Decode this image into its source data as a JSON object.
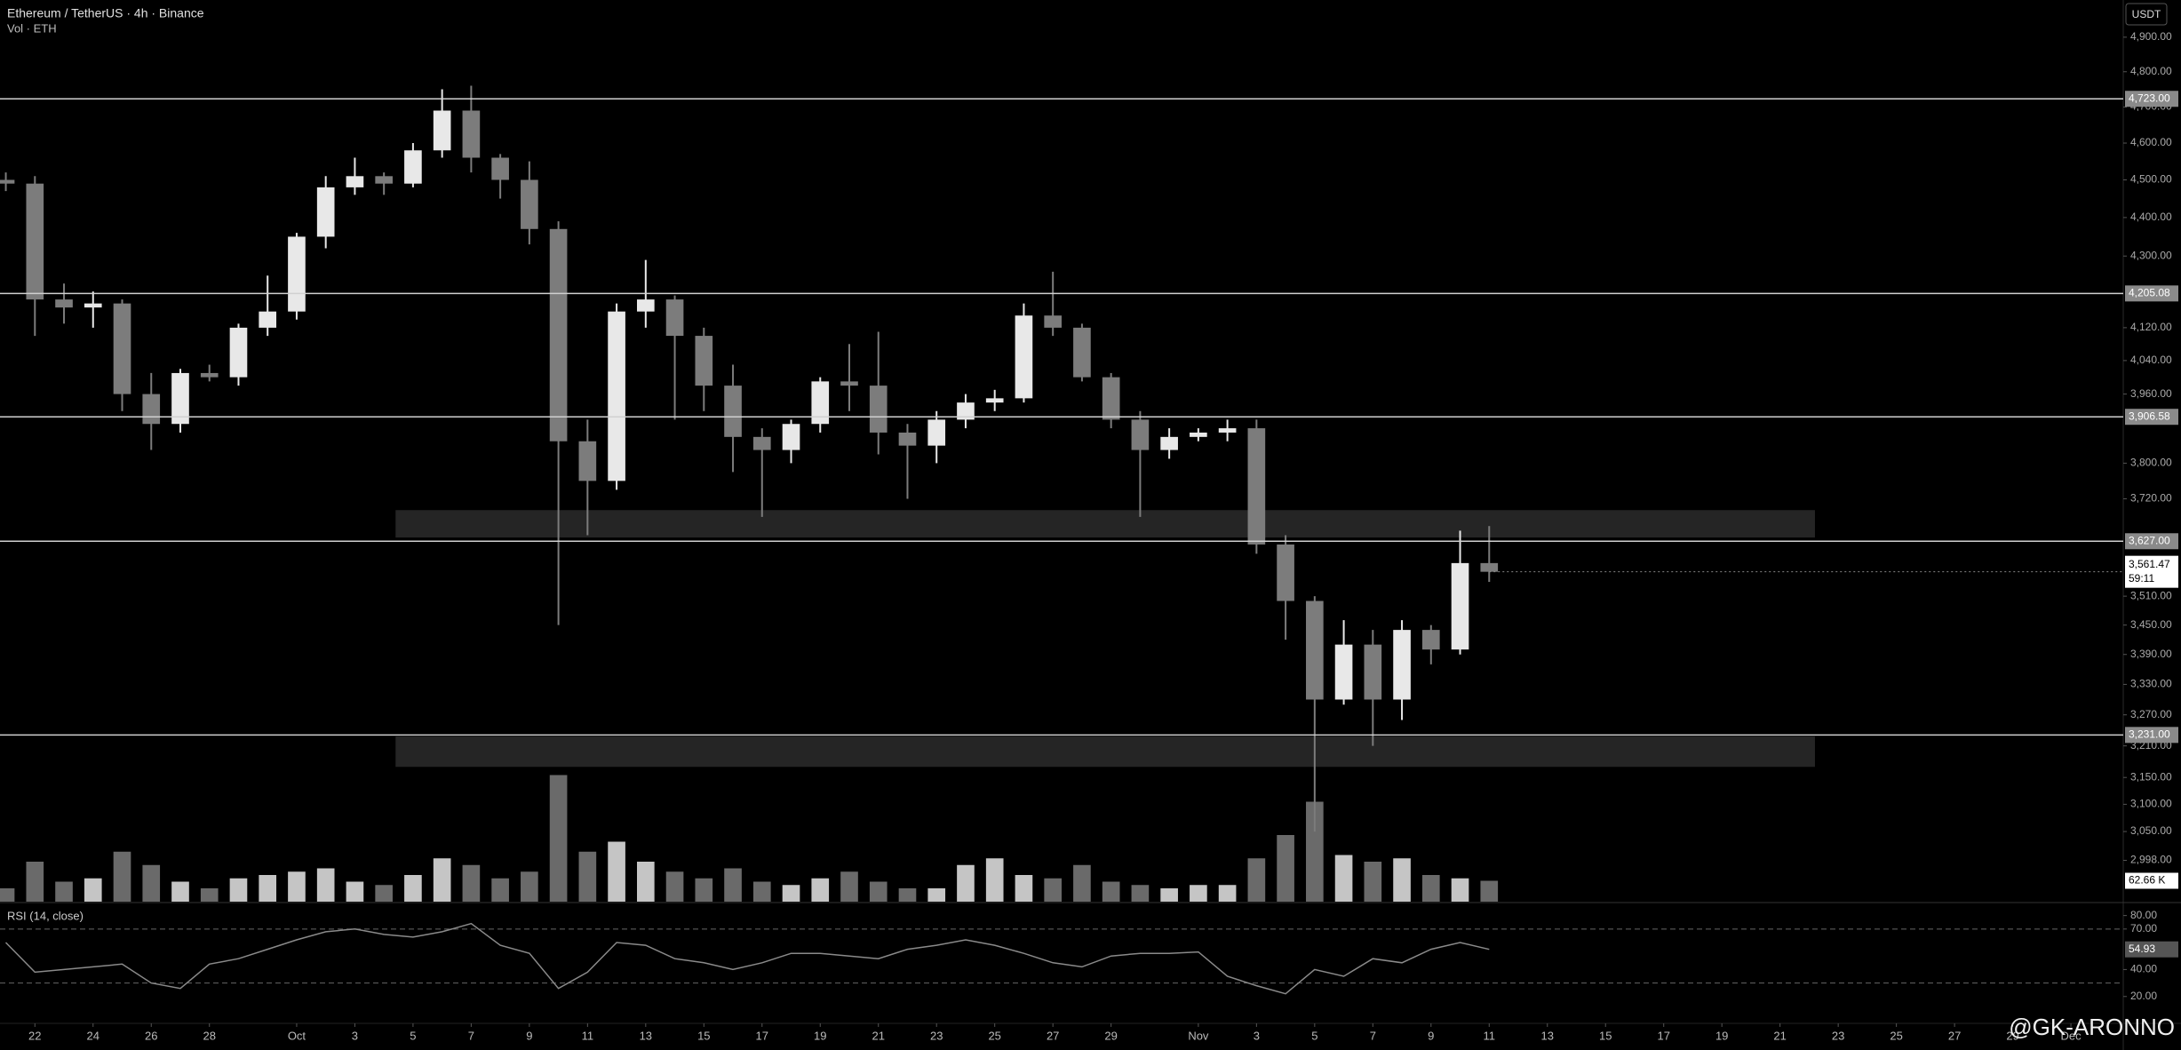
{
  "chart_data": {
    "type": "candlestick",
    "title": "Ethereum / TetherUS · 4h · Binance",
    "subtitle": "Vol · ETH",
    "currency": "USDT",
    "log_scale": true,
    "up_color": "#e8e8e8",
    "down_color": "#7c7c7c",
    "x": [
      -1,
      0,
      1,
      2,
      3,
      4,
      5,
      6,
      7,
      8,
      9,
      10,
      11,
      12,
      13,
      14,
      15,
      16,
      17,
      18,
      19,
      20,
      21,
      22,
      23,
      24,
      25,
      26,
      27,
      28,
      29,
      30,
      31,
      32,
      33,
      34,
      35,
      36,
      37,
      38,
      39,
      40,
      41,
      42,
      43,
      44,
      45,
      46,
      47,
      48,
      49,
      50
    ],
    "open": [
      4500,
      4490,
      4190,
      4170,
      4180,
      3960,
      3890,
      4010,
      4000,
      4120,
      4160,
      4350,
      4480,
      4510,
      4490,
      4580,
      4690,
      4560,
      4500,
      4370,
      3850,
      3760,
      4160,
      4190,
      4100,
      3980,
      3860,
      3830,
      3890,
      3990,
      3980,
      3870,
      3840,
      3900,
      3940,
      3950,
      4150,
      4120,
      4000,
      3900,
      3830,
      3860,
      3870,
      3880,
      3620,
      3500,
      3300,
      3410,
      3300,
      3440,
      3400,
      3580
    ],
    "high": [
      4520,
      4510,
      4230,
      4210,
      4190,
      4010,
      4020,
      4030,
      4130,
      4250,
      4360,
      4510,
      4560,
      4520,
      4600,
      4750,
      4760,
      4570,
      4550,
      4390,
      3900,
      4180,
      4290,
      4200,
      4120,
      4030,
      3880,
      3900,
      4000,
      4080,
      4110,
      3890,
      3920,
      3960,
      3970,
      4180,
      4260,
      4130,
      4010,
      3920,
      3880,
      3880,
      3900,
      3900,
      3640,
      3510,
      3460,
      3440,
      3460,
      3450,
      3650,
      3660
    ],
    "low": [
      4470,
      4100,
      4130,
      4120,
      3920,
      3830,
      3870,
      3990,
      3980,
      4100,
      4140,
      4320,
      4460,
      4460,
      4480,
      4560,
      4520,
      4450,
      4330,
      3450,
      3640,
      3740,
      4120,
      3900,
      3920,
      3780,
      3680,
      3800,
      3870,
      3920,
      3820,
      3720,
      3800,
      3880,
      3920,
      3940,
      4100,
      3990,
      3880,
      3680,
      3810,
      3850,
      3850,
      3600,
      3420,
      3050,
      3290,
      3210,
      3260,
      3370,
      3390,
      3540
    ],
    "close": [
      4490,
      4190,
      4170,
      4180,
      3960,
      3890,
      4010,
      4000,
      4120,
      4160,
      4350,
      4480,
      4510,
      4490,
      4580,
      4690,
      4560,
      4500,
      4370,
      3850,
      3760,
      4160,
      4190,
      4100,
      3980,
      3860,
      3830,
      3890,
      3990,
      3980,
      3870,
      3840,
      3900,
      3940,
      3950,
      4150,
      4120,
      4000,
      3900,
      3830,
      3860,
      3870,
      3880,
      3620,
      3500,
      3300,
      3410,
      3300,
      3440,
      3400,
      3580,
      3561.47
    ],
    "xlim": [
      -1.2,
      71.8
    ],
    "xticks": [
      {
        "value": 0,
        "label": "22"
      },
      {
        "value": 2,
        "label": "24"
      },
      {
        "value": 4,
        "label": "26"
      },
      {
        "value": 6,
        "label": "28"
      },
      {
        "value": 9,
        "label": "Oct"
      },
      {
        "value": 11,
        "label": "3"
      },
      {
        "value": 13,
        "label": "5"
      },
      {
        "value": 15,
        "label": "7"
      },
      {
        "value": 17,
        "label": "9"
      },
      {
        "value": 19,
        "label": "11"
      },
      {
        "value": 21,
        "label": "13"
      },
      {
        "value": 23,
        "label": "15"
      },
      {
        "value": 25,
        "label": "17"
      },
      {
        "value": 27,
        "label": "19"
      },
      {
        "value": 29,
        "label": "21"
      },
      {
        "value": 31,
        "label": "23"
      },
      {
        "value": 33,
        "label": "25"
      },
      {
        "value": 35,
        "label": "27"
      },
      {
        "value": 37,
        "label": "29"
      },
      {
        "value": 40,
        "label": "Nov"
      },
      {
        "value": 42,
        "label": "3"
      },
      {
        "value": 44,
        "label": "5"
      },
      {
        "value": 46,
        "label": "7"
      },
      {
        "value": 48,
        "label": "9"
      },
      {
        "value": 50,
        "label": "11"
      },
      {
        "value": 52,
        "label": "13"
      },
      {
        "value": 54,
        "label": "15"
      },
      {
        "value": 56,
        "label": "17"
      },
      {
        "value": 58,
        "label": "19"
      },
      {
        "value": 60,
        "label": "21"
      },
      {
        "value": 62,
        "label": "23"
      },
      {
        "value": 64,
        "label": "25"
      },
      {
        "value": 66,
        "label": "27"
      },
      {
        "value": 68,
        "label": "29"
      },
      {
        "value": 70,
        "label": "Dec"
      }
    ],
    "ylim": [
      2925,
      5010
    ],
    "yticks": [
      {
        "value": 4900,
        "label": "4,900.00"
      },
      {
        "value": 4800,
        "label": "4,800.00"
      },
      {
        "value": 4700,
        "label": "4,700.00"
      },
      {
        "value": 4600,
        "label": "4,600.00"
      },
      {
        "value": 4500,
        "label": "4,500.00"
      },
      {
        "value": 4400,
        "label": "4,400.00"
      },
      {
        "value": 4300,
        "label": "4,300.00"
      },
      {
        "value": 4120,
        "label": "4,120.00"
      },
      {
        "value": 4040,
        "label": "4,040.00"
      },
      {
        "value": 3960,
        "label": "3,960.00"
      },
      {
        "value": 3800,
        "label": "3,800.00"
      },
      {
        "value": 3720,
        "label": "3,720.00"
      },
      {
        "value": 3510,
        "label": "3,510.00"
      },
      {
        "value": 3450,
        "label": "3,450.00"
      },
      {
        "value": 3390,
        "label": "3,390.00"
      },
      {
        "value": 3330,
        "label": "3,330.00"
      },
      {
        "value": 3270,
        "label": "3,270.00"
      },
      {
        "value": 3210,
        "label": "3,210.00"
      },
      {
        "value": 3150,
        "label": "3,150.00"
      },
      {
        "value": 3100,
        "label": "3,100.00"
      },
      {
        "value": 3050,
        "label": "3,050.00"
      },
      {
        "value": 2998,
        "label": "2,998.00"
      }
    ],
    "levels": [
      {
        "value": 4723,
        "label": "4,723.00"
      },
      {
        "value": 4205.08,
        "label": "4,205.08"
      },
      {
        "value": 3906.58,
        "label": "3,906.58"
      },
      {
        "value": 3627,
        "label": "3,627.00"
      },
      {
        "value": 3231,
        "label": "3,231.00"
      }
    ],
    "zones": [
      {
        "x": [
          12.4,
          61.2
        ],
        "y": [
          3635,
          3695
        ]
      },
      {
        "x": [
          12.4,
          61.2
        ],
        "y": [
          3170,
          3228
        ]
      }
    ],
    "last_price": {
      "value": 3561.47,
      "label": "3,561.47"
    },
    "countdown": "59:11",
    "volume": {
      "values": [
        40,
        120,
        60,
        70,
        150,
        110,
        60,
        40,
        70,
        80,
        90,
        100,
        60,
        50,
        80,
        130,
        110,
        70,
        90,
        380,
        150,
        180,
        120,
        90,
        70,
        100,
        60,
        50,
        70,
        90,
        60,
        40,
        40,
        110,
        130,
        80,
        70,
        110,
        60,
        50,
        40,
        50,
        50,
        130,
        200,
        300,
        140,
        120,
        130,
        80,
        70,
        62.66
      ],
      "ylim": [
        0,
        400
      ],
      "last": {
        "value": 62.66,
        "label": "62.66 K"
      }
    },
    "rsi": {
      "title": "RSI (14, close)",
      "color": "#8a8a8a",
      "values": [
        60,
        38,
        40,
        42,
        44,
        30,
        26,
        44,
        48,
        55,
        62,
        68,
        70,
        66,
        64,
        68,
        74,
        58,
        52,
        26,
        38,
        60,
        58,
        48,
        45,
        40,
        45,
        52,
        52,
        50,
        48,
        55,
        58,
        62,
        58,
        52,
        45,
        42,
        50,
        52,
        52,
        53,
        35,
        28,
        22,
        40,
        35,
        48,
        45,
        55,
        60,
        54.93
      ],
      "ylim": [
        8,
        87
      ],
      "yticks": [
        {
          "value": 80,
          "label": "80.00"
        },
        {
          "value": 70,
          "label": "70.00"
        },
        {
          "value": 40,
          "label": "40.00"
        },
        {
          "value": 20,
          "label": "20.00"
        }
      ],
      "bands": [
        70,
        30
      ],
      "last": {
        "value": 54.93,
        "label": "54.93"
      }
    },
    "watermark": "@GK-ARONNO"
  }
}
